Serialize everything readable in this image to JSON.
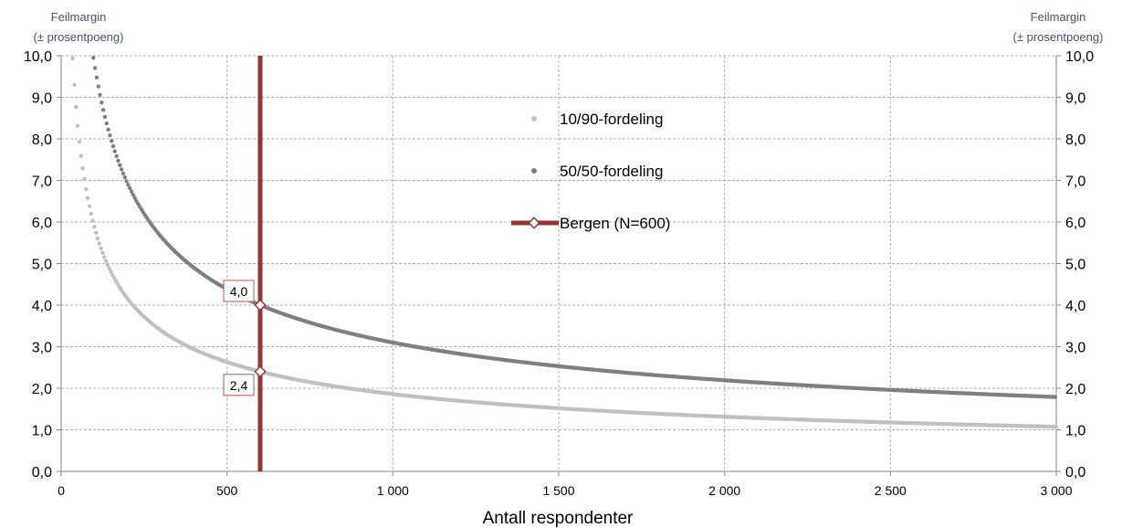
{
  "chart_data": {
    "type": "scatter",
    "y_axis_title_left": [
      "Feilmargin",
      "(± prosentpoeng)"
    ],
    "y_axis_title_right": [
      "Feilmargin",
      "(± prosentpoeng)"
    ],
    "xlabel": "Antall respondenter",
    "xlim": [
      0,
      3000
    ],
    "ylim": [
      0,
      10
    ],
    "x_ticks": [
      0,
      500,
      1000,
      1500,
      2000,
      2500,
      3000
    ],
    "x_tick_labels": [
      "0",
      "500",
      "1 000",
      "1 500",
      "2 000",
      "2 500",
      "3 000"
    ],
    "y_ticks": [
      0,
      1,
      2,
      3,
      4,
      5,
      6,
      7,
      8,
      9,
      10
    ],
    "y_tick_labels": [
      "0,0",
      "1,0",
      "2,0",
      "3,0",
      "4,0",
      "5,0",
      "6,0",
      "7,0",
      "8,0",
      "9,0",
      "10,0"
    ],
    "grid": true,
    "legend_position": "top-center",
    "series": [
      {
        "name": "10/90-fordeling",
        "color": "#c0c0c0",
        "p": 0.1,
        "x": [
          35,
          40,
          45,
          50,
          60,
          70,
          80,
          90,
          100,
          125,
          150,
          200,
          250,
          300,
          400,
          500,
          600,
          750,
          1000,
          1250,
          1500,
          1750,
          2000,
          2250,
          2500,
          2750,
          3000
        ],
        "values": [
          9.9,
          9.3,
          8.8,
          8.3,
          7.6,
          7.0,
          6.6,
          6.2,
          5.9,
          5.3,
          4.8,
          4.2,
          3.7,
          3.4,
          2.9,
          2.6,
          2.4,
          2.1,
          1.9,
          1.7,
          1.5,
          1.4,
          1.3,
          1.2,
          1.2,
          1.1,
          1.1
        ]
      },
      {
        "name": "50/50-fordeling",
        "color": "#7f7f7f",
        "p": 0.5,
        "x": [
          100,
          125,
          150,
          200,
          250,
          300,
          400,
          500,
          600,
          750,
          1000,
          1250,
          1500,
          1750,
          2000,
          2250,
          2500,
          2750,
          3000
        ],
        "values": [
          9.8,
          8.8,
          8.0,
          6.9,
          6.2,
          5.7,
          4.9,
          4.4,
          4.0,
          3.6,
          3.1,
          2.8,
          2.5,
          2.3,
          2.2,
          2.1,
          2.0,
          1.9,
          1.8
        ]
      },
      {
        "name": "Bergen (N=600)",
        "color": "#943634",
        "x_value": 600
      }
    ],
    "annotations": [
      {
        "text": "4,0",
        "x": 600,
        "y": 4.0
      },
      {
        "text": "2,4",
        "x": 600,
        "y": 2.4
      }
    ]
  }
}
